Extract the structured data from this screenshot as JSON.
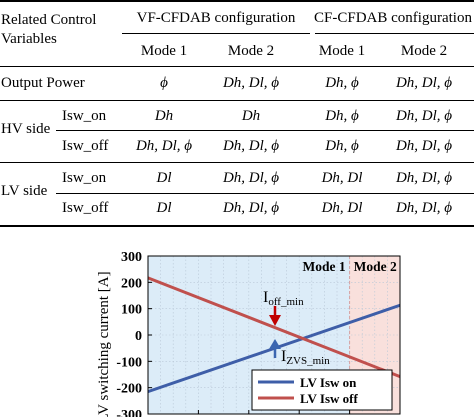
{
  "table": {
    "header": {
      "related": "Related Control",
      "variables": "Variables",
      "vf_config": "VF-CFDAB configuration",
      "cf_config": "CF-CFDAB configuration",
      "modes": [
        "Mode 1",
        "Mode 2",
        "Mode 1",
        "Mode 2"
      ]
    },
    "rows": [
      {
        "group": "Output Power",
        "sub": "",
        "cells": [
          "ϕ",
          "Dh, Dl, ϕ",
          "Dh, ϕ",
          "Dh, Dl, ϕ"
        ]
      },
      {
        "group": "HV side",
        "sub": "Isw_on",
        "cells": [
          "Dh",
          "Dh",
          "Dh, ϕ",
          "Dh, Dl, ϕ"
        ]
      },
      {
        "group": "",
        "sub": "Isw_off",
        "cells": [
          "Dh, Dl, ϕ",
          "Dh, Dl, ϕ",
          "Dh, ϕ",
          "Dh, Dl, ϕ"
        ]
      },
      {
        "group": "LV side",
        "sub": "Isw_on",
        "cells": [
          "Dl",
          "Dh, Dl, ϕ",
          "Dh, Dl",
          "Dh, Dl, ϕ"
        ]
      },
      {
        "group": "",
        "sub": "Isw_off",
        "cells": [
          "Dl",
          "Dh, Dl, ϕ",
          "Dh, Dl",
          "Dh, Dl, ϕ"
        ]
      }
    ]
  },
  "chart_data": {
    "type": "line",
    "ylabel": "LV switching current [A]",
    "ylim": [
      -300,
      300
    ],
    "yticks": [
      300,
      200,
      100,
      0,
      -100,
      -200,
      -300
    ],
    "xlim": [
      0,
      1
    ],
    "regions": [
      {
        "label": "Mode 1",
        "from": 0.0,
        "to": 0.8,
        "color": "#dcecf8"
      },
      {
        "label": "Mode 2",
        "from": 0.8,
        "to": 1.0,
        "color": "#f9e0dc"
      }
    ],
    "series": [
      {
        "name": "LV Isw on",
        "color": "#3e5ea8",
        "x": [
          0,
          1
        ],
        "y": [
          -215,
          113
        ]
      },
      {
        "name": "LV Isw off",
        "color": "#c0504d",
        "x": [
          0,
          1
        ],
        "y": [
          217,
          -158
        ]
      }
    ],
    "annotations": [
      {
        "text": "I",
        "subscript": "off_min",
        "arrow_color": "#c00000"
      },
      {
        "text": "I",
        "subscript": "ZVS_min",
        "arrow_color": "#3b66b0"
      }
    ],
    "legend_position": "bottom-right",
    "grid": true
  }
}
